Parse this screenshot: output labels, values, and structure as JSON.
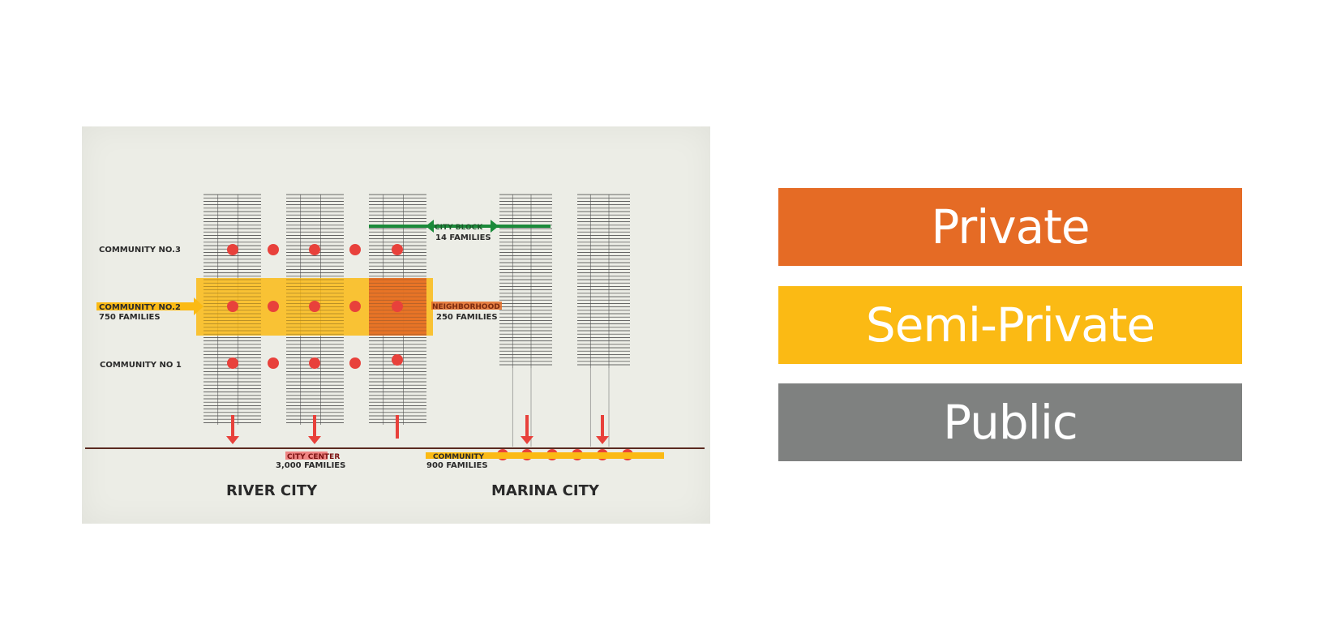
{
  "diagram": {
    "community_3": "COMMUNITY  NO.3",
    "community_2": "COMMUNITY  NO.2",
    "community_2_families": "750  FAMILIES",
    "community_1": "COMMUNITY  NO 1",
    "city_block": "CITY  BLOCK",
    "city_block_families": "14  FAMILIES",
    "neighborhood": "NEIGHBORHOOD",
    "neighborhood_families": "250 FAMILIES",
    "city_center": "CITY  CENTER",
    "city_center_families": "3,000   FAMILIES",
    "marina_community": "COMMUNITY",
    "marina_community_families": "900  FAMILIES",
    "river_city": "RIVER  CITY",
    "marina_city": "MARINA  CITY"
  },
  "legend": [
    {
      "label": "Private",
      "color": "#e56b25"
    },
    {
      "label": "Semi-Private",
      "color": "#fbba14"
    },
    {
      "label": "Public",
      "color": "#7f8180"
    }
  ],
  "colors": {
    "private": "#e56b25",
    "semi_private": "#fbba14",
    "public": "#7f8180",
    "dot": "#e8413b",
    "block_line": "#1b8a3a",
    "paper": "#ecede6"
  }
}
